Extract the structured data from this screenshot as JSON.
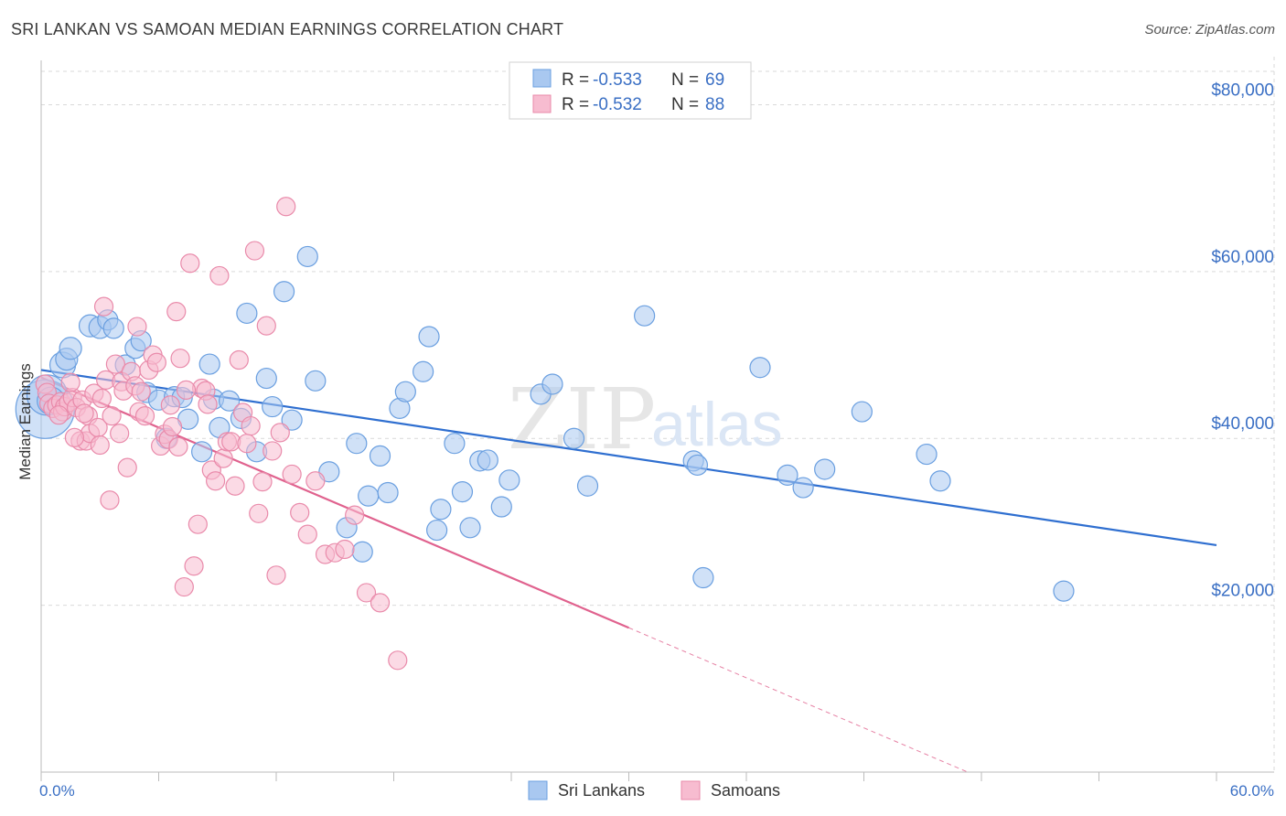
{
  "header": {
    "title": "SRI LANKAN VS SAMOAN MEDIAN EARNINGS CORRELATION CHART",
    "source": "Source: ZipAtlas.com"
  },
  "watermark": {
    "zip": "ZIP",
    "atlas": "atlas"
  },
  "colors": {
    "blue_fill": "#a9c8f0",
    "blue_stroke": "#6a9fe0",
    "blue_line": "#2f6fd0",
    "pink_fill": "#f7bcd0",
    "pink_stroke": "#e98aaa",
    "pink_line": "#e0628e",
    "accent_text": "#3a6fc4",
    "grid": "#d9d9d9"
  },
  "legend": {
    "rows": [
      {
        "r_label": "R =",
        "r_value": "-0.533",
        "n_label": "N =",
        "n_value": "69"
      },
      {
        "r_label": "R =",
        "r_value": "-0.532",
        "n_label": "N =",
        "n_value": "88"
      }
    ]
  },
  "bottom_legend": [
    "Sri Lankans",
    "Samoans"
  ],
  "chart_data": {
    "type": "scatter",
    "title": "SRI LANKAN VS SAMOAN MEDIAN EARNINGS CORRELATION CHART",
    "xlabel": "",
    "ylabel": "Median Earnings",
    "xlim": [
      0,
      60
    ],
    "ylim": [
      0,
      84000
    ],
    "x_tick_labels": [
      "0.0%",
      "60.0%"
    ],
    "y_ticks": [
      20000,
      40000,
      60000,
      80000
    ],
    "y_tick_labels": [
      "$20,000",
      "$40,000",
      "$60,000",
      "$80,000"
    ],
    "grid": true,
    "series": [
      {
        "name": "Sri Lankans",
        "r": -0.533,
        "n": 69,
        "trend": {
          "x": [
            0,
            60
          ],
          "y": [
            48200,
            27200
          ],
          "dashed_from_x": null
        },
        "points": [
          [
            0.2,
            43500
          ],
          [
            0.3,
            45200
          ],
          [
            0.5,
            44500
          ],
          [
            1.1,
            48800
          ],
          [
            1.3,
            49500
          ],
          [
            1.5,
            50800
          ],
          [
            2.5,
            53500
          ],
          [
            3.0,
            53300
          ],
          [
            3.4,
            54200
          ],
          [
            3.7,
            53200
          ],
          [
            4.3,
            48800
          ],
          [
            4.8,
            50800
          ],
          [
            5.1,
            51700
          ],
          [
            5.4,
            45500
          ],
          [
            6.0,
            44600
          ],
          [
            6.4,
            40000
          ],
          [
            6.8,
            45000
          ],
          [
            7.2,
            44900
          ],
          [
            7.5,
            42300
          ],
          [
            8.2,
            38400
          ],
          [
            8.6,
            48900
          ],
          [
            8.8,
            44700
          ],
          [
            9.1,
            41300
          ],
          [
            9.6,
            44500
          ],
          [
            10.2,
            42400
          ],
          [
            10.5,
            55000
          ],
          [
            11.0,
            38400
          ],
          [
            11.5,
            47200
          ],
          [
            11.8,
            43800
          ],
          [
            12.4,
            57600
          ],
          [
            12.8,
            42200
          ],
          [
            13.6,
            61800
          ],
          [
            14.0,
            46900
          ],
          [
            14.7,
            36000
          ],
          [
            15.6,
            29300
          ],
          [
            16.1,
            39400
          ],
          [
            16.4,
            26400
          ],
          [
            16.7,
            33100
          ],
          [
            17.3,
            37900
          ],
          [
            17.7,
            33500
          ],
          [
            18.3,
            43600
          ],
          [
            18.6,
            45600
          ],
          [
            19.5,
            48000
          ],
          [
            19.8,
            52200
          ],
          [
            20.2,
            29000
          ],
          [
            20.4,
            31500
          ],
          [
            21.1,
            39400
          ],
          [
            21.5,
            33600
          ],
          [
            21.9,
            29300
          ],
          [
            22.4,
            37300
          ],
          [
            22.8,
            37400
          ],
          [
            23.5,
            31800
          ],
          [
            23.9,
            35000
          ],
          [
            25.5,
            45300
          ],
          [
            26.1,
            46500
          ],
          [
            27.2,
            40000
          ],
          [
            27.9,
            34300
          ],
          [
            30.8,
            54700
          ],
          [
            33.3,
            37300
          ],
          [
            33.5,
            36800
          ],
          [
            33.8,
            23300
          ],
          [
            36.7,
            48500
          ],
          [
            38.1,
            35600
          ],
          [
            38.9,
            34100
          ],
          [
            40.0,
            36300
          ],
          [
            41.9,
            43200
          ],
          [
            45.2,
            38100
          ],
          [
            45.9,
            34900
          ],
          [
            52.2,
            21700
          ]
        ],
        "point_sizes": [
          32,
          22,
          15,
          14,
          12,
          12,
          12,
          12,
          11,
          11,
          11,
          11,
          11,
          11,
          11,
          11,
          11,
          11,
          11,
          11,
          11,
          11,
          11,
          11,
          11,
          11,
          11,
          11,
          11,
          11,
          11,
          11,
          11,
          11,
          11,
          11,
          11,
          11,
          11,
          11,
          11,
          11,
          11,
          11,
          11,
          11,
          11,
          11,
          11,
          11,
          11,
          11,
          11,
          11,
          11,
          11,
          11,
          11,
          11,
          11,
          11,
          11,
          11,
          11,
          11,
          11,
          11,
          11,
          11
        ]
      },
      {
        "name": "Samoans",
        "r": -0.532,
        "n": 88,
        "trend": {
          "x": [
            0,
            60
          ],
          "y": [
            47300,
            -12700
          ],
          "dashed_from_x": 30
        },
        "points": [
          [
            0.2,
            46500
          ],
          [
            0.3,
            45500
          ],
          [
            0.4,
            44200
          ],
          [
            0.6,
            43600
          ],
          [
            0.8,
            44000
          ],
          [
            1.0,
            44400
          ],
          [
            1.1,
            43200
          ],
          [
            1.2,
            43800
          ],
          [
            1.4,
            44300
          ],
          [
            1.6,
            44900
          ],
          [
            1.8,
            43700
          ],
          [
            2.0,
            39700
          ],
          [
            2.1,
            44600
          ],
          [
            2.3,
            39700
          ],
          [
            2.4,
            42700
          ],
          [
            2.5,
            40600
          ],
          [
            2.7,
            45400
          ],
          [
            2.9,
            41300
          ],
          [
            3.0,
            39200
          ],
          [
            3.1,
            44800
          ],
          [
            3.3,
            47000
          ],
          [
            3.5,
            32600
          ],
          [
            3.6,
            42700
          ],
          [
            3.8,
            48900
          ],
          [
            4.0,
            40600
          ],
          [
            4.1,
            46800
          ],
          [
            4.2,
            45700
          ],
          [
            4.4,
            36500
          ],
          [
            4.6,
            48000
          ],
          [
            4.8,
            46300
          ],
          [
            5.0,
            43200
          ],
          [
            5.1,
            45600
          ],
          [
            5.3,
            42700
          ],
          [
            5.5,
            48200
          ],
          [
            5.7,
            50000
          ],
          [
            5.9,
            49100
          ],
          [
            6.1,
            39100
          ],
          [
            6.3,
            40500
          ],
          [
            6.5,
            39900
          ],
          [
            6.7,
            41400
          ],
          [
            6.9,
            55200
          ],
          [
            7.1,
            49600
          ],
          [
            7.3,
            22200
          ],
          [
            7.6,
            61000
          ],
          [
            7.8,
            24700
          ],
          [
            8.0,
            29700
          ],
          [
            8.2,
            46000
          ],
          [
            8.4,
            45700
          ],
          [
            8.5,
            44100
          ],
          [
            8.7,
            36200
          ],
          [
            8.9,
            34900
          ],
          [
            9.1,
            59500
          ],
          [
            9.3,
            37600
          ],
          [
            9.5,
            39600
          ],
          [
            9.7,
            39600
          ],
          [
            9.9,
            34300
          ],
          [
            10.1,
            49400
          ],
          [
            10.3,
            43100
          ],
          [
            10.5,
            39400
          ],
          [
            10.7,
            41500
          ],
          [
            10.9,
            62500
          ],
          [
            11.1,
            31000
          ],
          [
            11.3,
            34800
          ],
          [
            11.5,
            53500
          ],
          [
            11.8,
            38500
          ],
          [
            12.0,
            23600
          ],
          [
            12.2,
            40700
          ],
          [
            12.5,
            67800
          ],
          [
            12.8,
            35700
          ],
          [
            13.2,
            31100
          ],
          [
            13.6,
            28500
          ],
          [
            14.0,
            34900
          ],
          [
            14.5,
            26100
          ],
          [
            15.0,
            26300
          ],
          [
            15.5,
            26700
          ],
          [
            16.0,
            30800
          ],
          [
            16.6,
            21500
          ],
          [
            17.3,
            20300
          ],
          [
            18.2,
            13400
          ],
          [
            3.2,
            55800
          ],
          [
            4.9,
            53400
          ],
          [
            6.6,
            44000
          ],
          [
            7.0,
            39000
          ],
          [
            7.4,
            45800
          ],
          [
            2.2,
            43000
          ],
          [
            1.5,
            46700
          ],
          [
            0.9,
            42800
          ],
          [
            1.7,
            40100
          ]
        ]
      }
    ]
  }
}
